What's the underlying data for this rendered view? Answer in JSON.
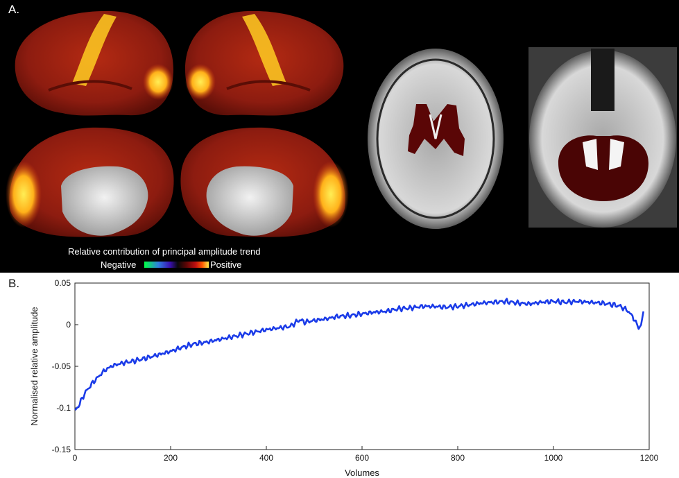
{
  "panel_a": {
    "label": "A.",
    "legend": {
      "title": "Relative contribution of principal amplitude trend",
      "negative_label": "Negative",
      "positive_label": "Positive",
      "colors": [
        "#00ff44",
        "#2f7de0",
        "#3a10b0",
        "#080808",
        "#600606",
        "#c01010",
        "#ff5a00",
        "#ffe84a"
      ]
    },
    "images": [
      {
        "name": "left-lateral-cortex"
      },
      {
        "name": "right-lateral-cortex"
      },
      {
        "name": "left-medial-cortex"
      },
      {
        "name": "right-medial-cortex"
      },
      {
        "name": "axial-slice-subcortical"
      },
      {
        "name": "axial-slice-cerebellum"
      }
    ]
  },
  "panel_b": {
    "label": "B."
  },
  "chart_data": {
    "type": "line",
    "xlabel": "Volumes",
    "ylabel": "Normalised relative amplitude",
    "xlim": [
      0,
      1200
    ],
    "ylim": [
      -0.15,
      0.05
    ],
    "xticks": [
      0,
      200,
      400,
      600,
      800,
      1000,
      1200
    ],
    "yticks": [
      -0.15,
      -0.1,
      -0.05,
      0,
      0.05
    ],
    "xtick_labels": [
      "0",
      "200",
      "400",
      "600",
      "800",
      "1000",
      "1200"
    ],
    "ytick_labels": [
      "-0.15",
      "-0.1",
      "-0.05",
      "0",
      "0.05"
    ],
    "grid": false,
    "series": [
      {
        "color": "#1a3be8",
        "x": [
          0,
          10,
          20,
          30,
          40,
          50,
          60,
          70,
          80,
          100,
          120,
          150,
          175,
          200,
          225,
          250,
          275,
          300,
          325,
          350,
          375,
          400,
          425,
          450,
          470,
          480,
          500,
          525,
          550,
          575,
          600,
          625,
          650,
          675,
          700,
          725,
          750,
          775,
          800,
          825,
          850,
          875,
          900,
          925,
          950,
          975,
          1000,
          1025,
          1050,
          1075,
          1100,
          1125,
          1140,
          1155,
          1165,
          1172,
          1178,
          1183,
          1188
        ],
        "y": [
          -0.104,
          -0.095,
          -0.083,
          -0.075,
          -0.068,
          -0.062,
          -0.056,
          -0.052,
          -0.049,
          -0.046,
          -0.044,
          -0.04,
          -0.036,
          -0.032,
          -0.027,
          -0.023,
          -0.021,
          -0.018,
          -0.015,
          -0.012,
          -0.009,
          -0.006,
          -0.004,
          -0.002,
          0.006,
          0.003,
          0.005,
          0.007,
          0.01,
          0.011,
          0.013,
          0.015,
          0.016,
          0.019,
          0.02,
          0.022,
          0.022,
          0.021,
          0.022,
          0.024,
          0.026,
          0.027,
          0.028,
          0.026,
          0.025,
          0.027,
          0.028,
          0.027,
          0.028,
          0.027,
          0.026,
          0.024,
          0.022,
          0.017,
          0.01,
          0.003,
          -0.004,
          0.0,
          0.016
        ]
      }
    ]
  }
}
